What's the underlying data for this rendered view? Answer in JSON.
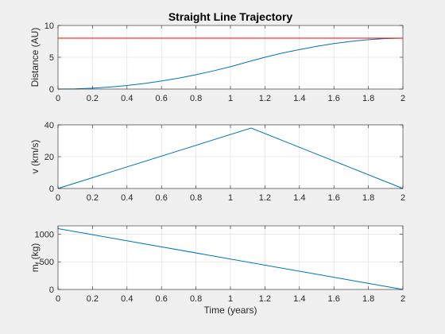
{
  "chart_data": [
    {
      "type": "line",
      "title": "Straight Line Trajectory",
      "xlabel": "",
      "ylabel": "Distance (AU)",
      "xlim": [
        0,
        2
      ],
      "ylim": [
        0,
        10
      ],
      "xticks": [
        0,
        0.2,
        0.4,
        0.6,
        0.8,
        1,
        1.2,
        1.4,
        1.6,
        1.8,
        2
      ],
      "xtick_labels": [
        "0",
        "0.2",
        "0.4",
        "0.6",
        "0.8",
        "1",
        "1.2",
        "1.4",
        "1.6",
        "1.8",
        "2"
      ],
      "yticks": [
        0,
        5,
        10
      ],
      "ytick_labels": [
        "0",
        "5",
        "10"
      ],
      "grid": true,
      "series": [
        {
          "color": "#0072bd",
          "x": [
            0,
            0.1,
            0.2,
            0.3,
            0.4,
            0.5,
            0.6,
            0.7,
            0.8,
            0.9,
            1.0,
            1.12,
            1.2,
            1.3,
            1.4,
            1.5,
            1.6,
            1.7,
            1.8,
            1.9,
            2.0
          ],
          "y": [
            0,
            0.035,
            0.14,
            0.32,
            0.56,
            0.88,
            1.27,
            1.72,
            2.25,
            2.85,
            3.52,
            4.42,
            5.0,
            5.65,
            6.2,
            6.72,
            7.15,
            7.5,
            7.76,
            7.93,
            8.0
          ]
        },
        {
          "color": "#ff0000",
          "x": [
            0,
            2
          ],
          "y": [
            8,
            8
          ]
        }
      ]
    },
    {
      "type": "line",
      "title": "",
      "xlabel": "",
      "ylabel": "v (km/s)",
      "xlim": [
        0,
        2
      ],
      "ylim": [
        0,
        40
      ],
      "xticks": [
        0,
        0.2,
        0.4,
        0.6,
        0.8,
        1,
        1.2,
        1.4,
        1.6,
        1.8,
        2
      ],
      "xtick_labels": [
        "0",
        "0.2",
        "0.4",
        "0.6",
        "0.8",
        "1",
        "1.2",
        "1.4",
        "1.6",
        "1.8",
        "2"
      ],
      "yticks": [
        0,
        20,
        40
      ],
      "ytick_labels": [
        "0",
        "20",
        "40"
      ],
      "grid": true,
      "series": [
        {
          "color": "#0072bd",
          "x": [
            0,
            1.12,
            2.0
          ],
          "y": [
            0,
            38,
            0
          ]
        }
      ]
    },
    {
      "type": "line",
      "title": "",
      "xlabel": "Time (years)",
      "ylabel": "m",
      "ylabel_sub": "f",
      "ylabel_rest": " (kg)",
      "xlim": [
        0,
        2
      ],
      "ylim": [
        0,
        1150
      ],
      "xticks": [
        0,
        0.2,
        0.4,
        0.6,
        0.8,
        1,
        1.2,
        1.4,
        1.6,
        1.8,
        2
      ],
      "xtick_labels": [
        "0",
        "0.2",
        "0.4",
        "0.6",
        "0.8",
        "1",
        "1.2",
        "1.4",
        "1.6",
        "1.8",
        "2"
      ],
      "yticks": [
        0,
        500,
        1000
      ],
      "ytick_labels": [
        "0",
        "500",
        "1000"
      ],
      "grid": true,
      "series": [
        {
          "color": "#0072bd",
          "x": [
            0,
            2.0
          ],
          "y": [
            1100,
            0
          ]
        }
      ]
    }
  ]
}
